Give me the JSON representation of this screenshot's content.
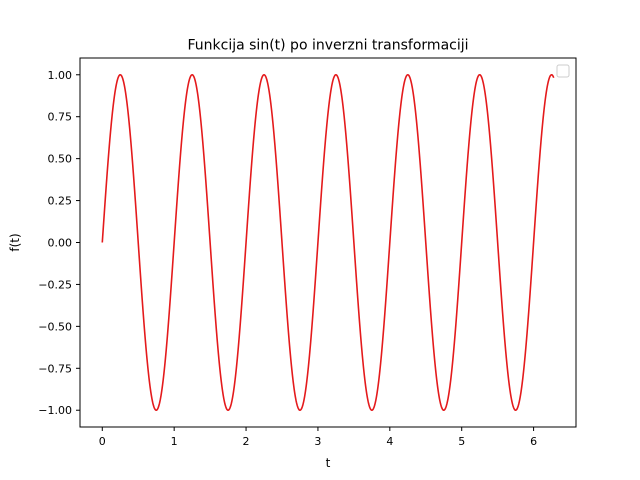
{
  "chart_data": {
    "type": "line",
    "title": "Funkcija sin(t) po inverzni transformaciji",
    "xlabel": "t",
    "ylabel": "f(t)",
    "xlim": [
      -0.31,
      6.59
    ],
    "ylim": [
      -1.1,
      1.1
    ],
    "x_ticks": [
      0,
      1,
      2,
      3,
      4,
      5,
      6
    ],
    "x_tick_labels": [
      "0",
      "1",
      "2",
      "3",
      "4",
      "5",
      "6"
    ],
    "y_ticks": [
      -1.0,
      -0.75,
      -0.5,
      -0.25,
      0.0,
      0.25,
      0.5,
      0.75,
      1.0
    ],
    "y_tick_labels": [
      "−1.00",
      "−0.75",
      "−0.50",
      "−0.25",
      "0.00",
      "0.25",
      "0.50",
      "0.75",
      "1.00"
    ],
    "grid": false,
    "legend": "top-right, empty",
    "series": [
      {
        "function": "sin(2*pi*t)",
        "t_start": 0,
        "t_end": 6.28,
        "color": "#e41a1c"
      }
    ]
  }
}
